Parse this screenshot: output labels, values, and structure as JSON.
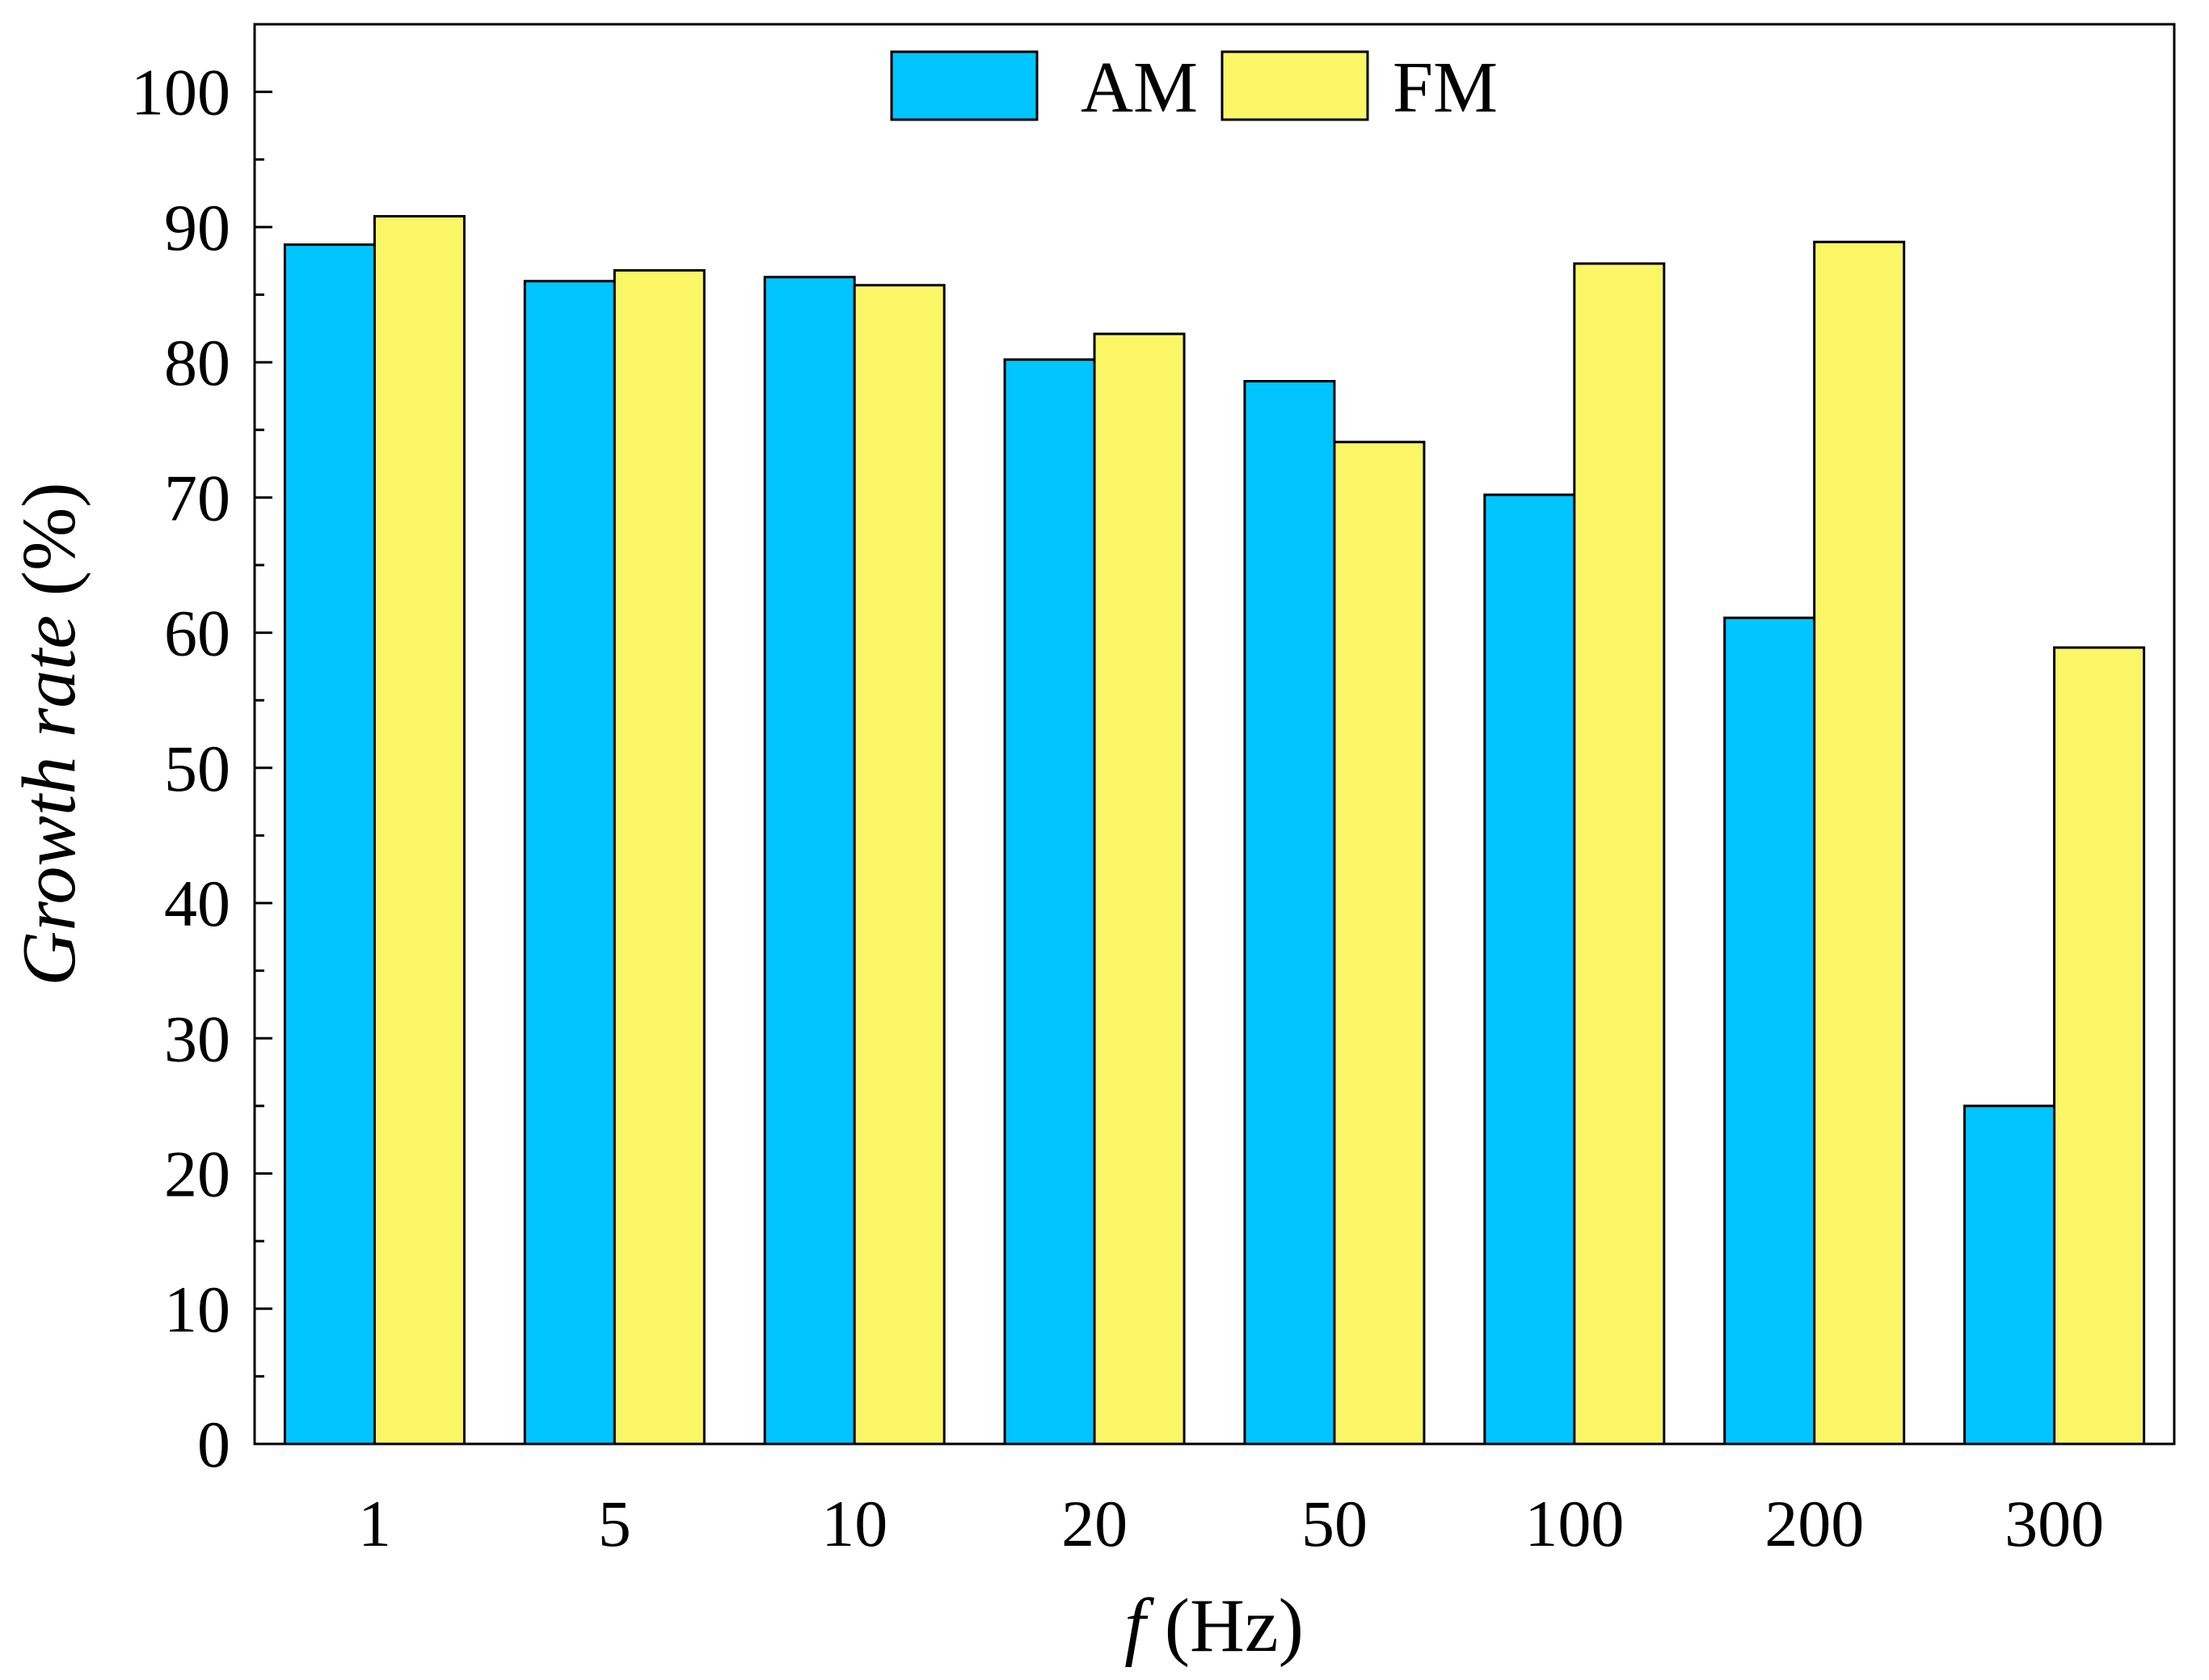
{
  "chart_data": {
    "type": "bar",
    "categories": [
      "1",
      "5",
      "10",
      "20",
      "50",
      "100",
      "200",
      "300"
    ],
    "series": [
      {
        "name": "AM",
        "color": "#00C5FF",
        "values": [
          88.7,
          86.0,
          86.3,
          80.2,
          78.6,
          70.2,
          61.1,
          25.0
        ]
      },
      {
        "name": "FM",
        "color": "#FAF666",
        "values": [
          90.8,
          86.8,
          85.7,
          82.1,
          74.1,
          87.3,
          88.9,
          58.9
        ]
      }
    ],
    "xlabel_italic": "f",
    "xlabel_rest": " (Hz)",
    "ylabel_italic": "Growth rate",
    "ylabel_rest": " (%)",
    "ylim": [
      0,
      105
    ],
    "yticks": [
      0,
      10,
      20,
      30,
      40,
      50,
      60,
      70,
      80,
      90,
      100
    ],
    "yticks_minor": [
      5,
      15,
      25,
      35,
      45,
      55,
      65,
      75,
      85,
      95
    ],
    "grid": false,
    "legend_placement": "top-center"
  }
}
